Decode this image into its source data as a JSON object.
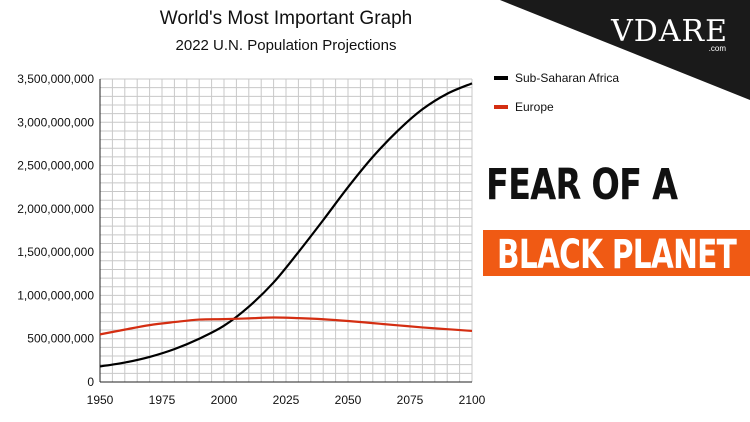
{
  "chart_data": {
    "type": "line",
    "title": "World's Most Important Graph",
    "subtitle": "2022 U.N. Population Projections",
    "xlabel": "",
    "ylabel": "",
    "xlim": [
      1950,
      2100
    ],
    "ylim": [
      0,
      3500000000
    ],
    "x_ticks": [
      "1950",
      "1975",
      "2000",
      "2025",
      "2050",
      "2075",
      "2100"
    ],
    "y_ticks": [
      "0",
      "500,000,000",
      "1,000,000,000",
      "1,500,000,000",
      "2,000,000,000",
      "2,500,000,000",
      "3,000,000,000",
      "3,500,000,000"
    ],
    "grid": true,
    "legend": "right",
    "x": [
      1950,
      1960,
      1970,
      1980,
      1990,
      2000,
      2010,
      2020,
      2030,
      2040,
      2050,
      2060,
      2070,
      2080,
      2090,
      2100
    ],
    "series": [
      {
        "name": "Sub-Saharan Africa",
        "color": "#000000",
        "values": [
          180000000,
          225000000,
          290000000,
          380000000,
          500000000,
          650000000,
          870000000,
          1150000000,
          1500000000,
          1870000000,
          2250000000,
          2600000000,
          2900000000,
          3150000000,
          3330000000,
          3450000000
        ]
      },
      {
        "name": "Europe",
        "color": "#d42e12",
        "values": [
          550000000,
          605000000,
          657000000,
          692000000,
          721000000,
          726000000,
          735000000,
          745000000,
          738000000,
          725000000,
          705000000,
          680000000,
          655000000,
          630000000,
          610000000,
          590000000
        ]
      }
    ]
  },
  "brand": {
    "name": "VDARE",
    "domain": ".com"
  },
  "headline": {
    "line1": "FEAR OF A",
    "line2": "BLACK PLANET"
  }
}
